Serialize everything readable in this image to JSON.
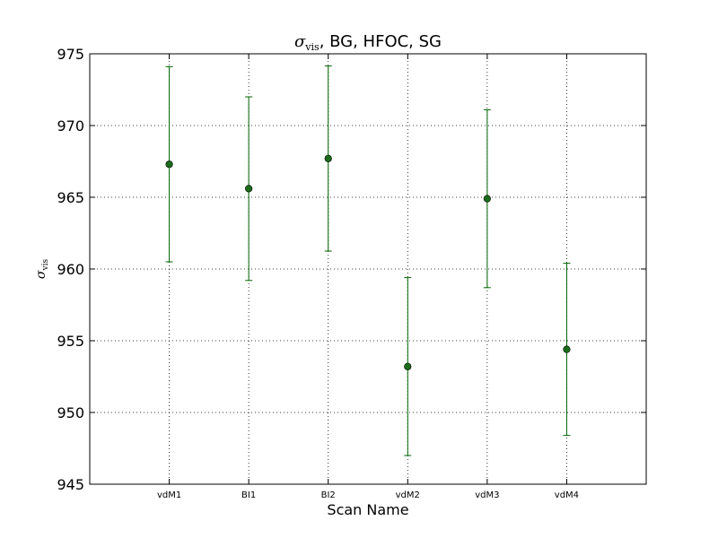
{
  "chart_data": {
    "type": "scatter",
    "title_symbol": "σ",
    "title_subscript": "vis",
    "title_rest": ", BG, HFOC, SG",
    "xlabel": "Scan Name",
    "ylabel_symbol": "σ",
    "ylabel_subscript": "vis",
    "categories": [
      "vdM1",
      "BI1",
      "BI2",
      "vdM2",
      "vdM3",
      "vdM4"
    ],
    "values": [
      967.3,
      965.6,
      967.7,
      953.2,
      964.9,
      954.4
    ],
    "errors": [
      6.8,
      6.4,
      6.45,
      6.2,
      6.2,
      6.0
    ],
    "ylim": [
      945,
      975
    ],
    "yticks": [
      945,
      950,
      955,
      960,
      965,
      970,
      975
    ],
    "grid": true,
    "series_color": "#006400",
    "marker_color": "#1a6b1a"
  }
}
